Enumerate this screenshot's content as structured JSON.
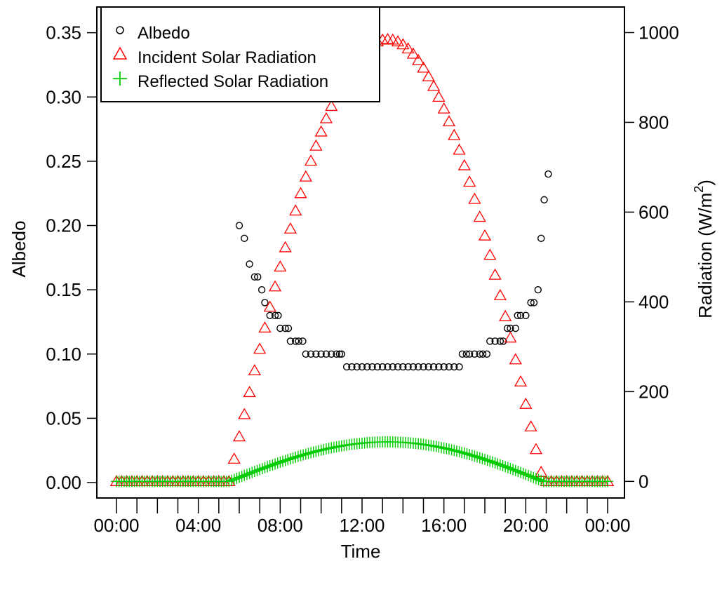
{
  "chart_data": {
    "type": "scatter",
    "xlabel": "Time",
    "ylabel": "Albedo",
    "y2label": "Radiation (W/m",
    "y2label_sup": "2",
    "y2label_close": ")",
    "xlim": [
      0,
      24
    ],
    "ylim": [
      -0.012,
      0.37
    ],
    "y2lim": [
      -37,
      1057
    ],
    "x_tick_labels": [
      "00:00",
      "04:00",
      "08:00",
      "12:00",
      "16:00",
      "20:00",
      "00:00"
    ],
    "x_tick_values": [
      0,
      4,
      8,
      12,
      16,
      20,
      24
    ],
    "x_minor_step_hours": 1,
    "y_ticks": [
      {
        "value": 0.0,
        "label": "0.00"
      },
      {
        "value": 0.05,
        "label": "0.05"
      },
      {
        "value": 0.1,
        "label": "0.10"
      },
      {
        "value": 0.15,
        "label": "0.15"
      },
      {
        "value": 0.2,
        "label": "0.20"
      },
      {
        "value": 0.25,
        "label": "0.25"
      },
      {
        "value": 0.3,
        "label": "0.30"
      },
      {
        "value": 0.35,
        "label": "0.35"
      }
    ],
    "y2_ticks": [
      {
        "value": 0,
        "label": "0"
      },
      {
        "value": 200,
        "label": "200"
      },
      {
        "value": 400,
        "label": "400"
      },
      {
        "value": 600,
        "label": "600"
      },
      {
        "value": 800,
        "label": "800"
      },
      {
        "value": 1000,
        "label": "1000"
      }
    ],
    "legend_position": "top-left",
    "grid": false,
    "series": [
      {
        "name": "Albedo",
        "axis": "left",
        "marker": "circle",
        "color": "#000000",
        "points": [
          [
            6.0,
            0.2
          ],
          [
            6.25,
            0.19
          ],
          [
            6.5,
            0.17
          ],
          [
            6.75,
            0.16
          ],
          [
            6.9,
            0.16
          ],
          [
            7.1,
            0.15
          ],
          [
            7.25,
            0.14
          ],
          [
            7.5,
            0.13
          ],
          [
            7.75,
            0.13
          ],
          [
            7.9,
            0.13
          ],
          [
            8.0,
            0.12
          ],
          [
            8.25,
            0.12
          ],
          [
            8.4,
            0.12
          ],
          [
            8.5,
            0.11
          ],
          [
            8.75,
            0.11
          ],
          [
            8.9,
            0.11
          ],
          [
            9.1,
            0.11
          ],
          [
            9.25,
            0.1
          ],
          [
            9.5,
            0.1
          ],
          [
            9.75,
            0.1
          ],
          [
            10.0,
            0.1
          ],
          [
            10.25,
            0.1
          ],
          [
            10.5,
            0.1
          ],
          [
            10.75,
            0.1
          ],
          [
            10.9,
            0.1
          ],
          [
            11.0,
            0.1
          ],
          [
            11.25,
            0.09
          ],
          [
            11.5,
            0.09
          ],
          [
            11.75,
            0.09
          ],
          [
            12.0,
            0.09
          ],
          [
            12.25,
            0.09
          ],
          [
            12.5,
            0.09
          ],
          [
            12.75,
            0.09
          ],
          [
            13.0,
            0.09
          ],
          [
            13.25,
            0.09
          ],
          [
            13.5,
            0.09
          ],
          [
            13.75,
            0.09
          ],
          [
            14.0,
            0.09
          ],
          [
            14.25,
            0.09
          ],
          [
            14.5,
            0.09
          ],
          [
            14.75,
            0.09
          ],
          [
            15.0,
            0.09
          ],
          [
            15.25,
            0.09
          ],
          [
            15.5,
            0.09
          ],
          [
            15.75,
            0.09
          ],
          [
            16.0,
            0.09
          ],
          [
            16.25,
            0.09
          ],
          [
            16.5,
            0.09
          ],
          [
            16.75,
            0.09
          ],
          [
            16.9,
            0.1
          ],
          [
            17.1,
            0.1
          ],
          [
            17.25,
            0.1
          ],
          [
            17.5,
            0.1
          ],
          [
            17.75,
            0.1
          ],
          [
            17.9,
            0.1
          ],
          [
            18.1,
            0.1
          ],
          [
            18.25,
            0.11
          ],
          [
            18.5,
            0.11
          ],
          [
            18.75,
            0.11
          ],
          [
            18.9,
            0.11
          ],
          [
            19.1,
            0.12
          ],
          [
            19.25,
            0.12
          ],
          [
            19.5,
            0.12
          ],
          [
            19.6,
            0.13
          ],
          [
            19.75,
            0.13
          ],
          [
            20.0,
            0.13
          ],
          [
            20.25,
            0.14
          ],
          [
            20.4,
            0.14
          ],
          [
            20.6,
            0.15
          ],
          [
            20.75,
            0.19
          ],
          [
            20.9,
            0.22
          ],
          [
            21.1,
            0.24
          ]
        ]
      },
      {
        "name": "Incident Solar Radiation",
        "axis": "right",
        "marker": "triangle",
        "color": "#ff0000",
        "sample": {
          "start": 0,
          "end": 24,
          "step": 0.25
        },
        "shape": {
          "peak_value": 985,
          "peak_time": 13.25,
          "sunrise": 5.5,
          "sunset": 20.85
        }
      },
      {
        "name": "Reflected Solar Radiation",
        "axis": "right",
        "marker": "plus",
        "color": "#00cc00",
        "sample": {
          "start": 0,
          "end": 24,
          "step": 0.125
        },
        "shape": {
          "peak_value": 88,
          "peak_time": 13.25,
          "sunrise": 5.5,
          "sunset": 20.85
        }
      }
    ]
  }
}
